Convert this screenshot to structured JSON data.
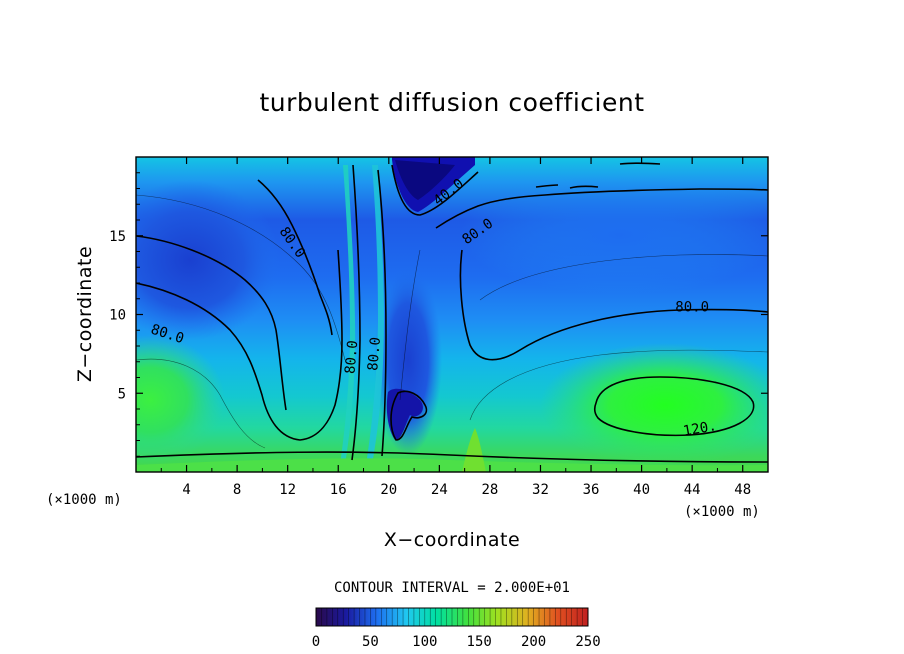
{
  "chart_data": {
    "type": "heatmap",
    "title": "turbulent diffusion coefficient",
    "xlabel": "X−coordinate",
    "ylabel": "Z−coordinate",
    "x_unit": "(×1000 m)",
    "x_unit_right": "(×1000 m)",
    "xlim": [
      0,
      50
    ],
    "ylim": [
      0,
      20
    ],
    "x_ticks": [
      4,
      8,
      12,
      16,
      20,
      24,
      28,
      32,
      36,
      40,
      44,
      48
    ],
    "y_ticks": [
      5,
      10,
      15
    ],
    "contour_interval_text": "CONTOUR INTERVAL = 2.000E+01",
    "contour_interval": 20,
    "colorbar": {
      "min": 0,
      "max": 250,
      "ticks": [
        0,
        50,
        100,
        150,
        200,
        250
      ],
      "colors": [
        "#2a0a4a",
        "#1a1aa0",
        "#1e6ef0",
        "#20c8f0",
        "#00e0a0",
        "#40e040",
        "#a0e020",
        "#e0b020",
        "#e05020",
        "#c02020"
      ]
    },
    "contour_labels": [
      {
        "text": "80.0",
        "x": 2.5,
        "y": 8.8
      },
      {
        "text": "80.0",
        "x": 12.4,
        "y": 14.6
      },
      {
        "text": "80.0",
        "x": 17.0,
        "y": 7.3
      },
      {
        "text": "80.0",
        "x": 18.8,
        "y": 7.5
      },
      {
        "text": "40.0",
        "x": 24.7,
        "y": 17.8
      },
      {
        "text": "80.0",
        "x": 27.0,
        "y": 15.3
      },
      {
        "text": "80.0",
        "x": 44.0,
        "y": 10.5
      },
      {
        "text": "120.",
        "x": 44.6,
        "y": 2.8
      }
    ]
  }
}
